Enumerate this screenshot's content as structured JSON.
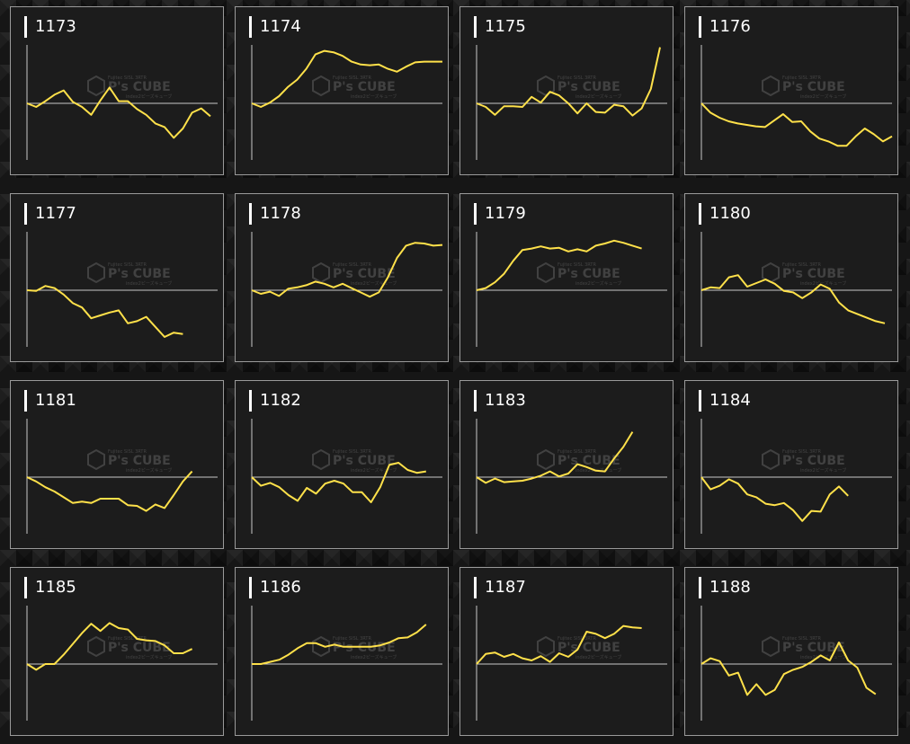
{
  "watermark": {
    "brand": "P's CUBE",
    "top_line": "Fujitec SISL 3RTR",
    "bottom_line": "index2ピーズキューブ"
  },
  "colors": {
    "line": "#ffe14a",
    "panel_bg": "#1c1c1c",
    "panel_border": "#9a9a9a",
    "axis": "#c8c8c8"
  },
  "chart_data": [
    {
      "type": "line",
      "title": "1173",
      "ylim": [
        -8,
        8
      ],
      "values": [
        0,
        -0.5,
        0.3,
        1.2,
        1.8,
        0.2,
        -0.5,
        -1.6,
        0.4,
        2.2,
        0.3,
        0.3,
        -0.8,
        -1.6,
        -2.8,
        -3.3,
        -4.8,
        -3.5,
        -1.3,
        -0.7,
        -1.8
      ]
    },
    {
      "type": "line",
      "title": "1174",
      "ylim": [
        -8,
        8
      ],
      "values": [
        0,
        -0.5,
        0.1,
        1.0,
        2.3,
        3.3,
        4.8,
        6.8,
        7.3,
        7.1,
        6.6,
        5.8,
        5.4,
        5.3,
        5.4,
        4.8,
        4.4,
        5.1,
        5.7,
        5.8,
        5.8,
        5.8
      ]
    },
    {
      "type": "line",
      "title": "1175",
      "ylim": [
        -8,
        8
      ],
      "values": [
        0,
        -0.5,
        -1.6,
        -0.4,
        -0.4,
        -0.5,
        0.9,
        0.1,
        1.6,
        1.1,
        0,
        -1.4,
        0,
        -1.2,
        -1.3,
        -0.2,
        -0.4,
        -1.7,
        -0.7,
        2.0,
        7.8
      ]
    },
    {
      "type": "line",
      "title": "1176",
      "ylim": [
        -8,
        8
      ],
      "values": [
        0,
        -1.3,
        -2.0,
        -2.5,
        -2.8,
        -3.0,
        -3.2,
        -3.3,
        -2.4,
        -1.5,
        -2.6,
        -2.5,
        -3.9,
        -4.9,
        -5.3,
        -5.9,
        -5.9,
        -4.6,
        -3.5,
        -4.3,
        -5.3,
        -4.6
      ]
    },
    {
      "type": "line",
      "title": "1177",
      "ylim": [
        -8,
        8
      ],
      "values": [
        0,
        -0.1,
        0.6,
        0.3,
        -0.6,
        -1.8,
        -2.4,
        -3.9,
        -3.5,
        -3.1,
        -2.8,
        -4.6,
        -4.3,
        -3.7,
        -5.1,
        -6.5,
        -5.9,
        -6.1
      ]
    },
    {
      "type": "line",
      "title": "1178",
      "ylim": [
        -8,
        8
      ],
      "values": [
        0,
        -0.5,
        -0.2,
        -0.8,
        0.2,
        0.4,
        0.7,
        1.2,
        0.9,
        0.4,
        0.9,
        0.3,
        -0.3,
        -0.9,
        -0.3,
        1.8,
        4.5,
        6.2,
        6.6,
        6.5,
        6.2,
        6.3
      ]
    },
    {
      "type": "line",
      "title": "1179",
      "ylim": [
        -8,
        8
      ],
      "values": [
        0,
        0.3,
        1.1,
        2.3,
        4.1,
        5.6,
        5.8,
        6.1,
        5.8,
        5.9,
        5.4,
        5.7,
        5.4,
        6.2,
        6.5,
        6.9,
        6.6,
        6.2,
        5.8
      ]
    },
    {
      "type": "line",
      "title": "1180",
      "ylim": [
        -8,
        8
      ],
      "values": [
        0,
        0.4,
        0.3,
        1.8,
        2.1,
        0.5,
        1.0,
        1.5,
        0.9,
        -0.1,
        -0.3,
        -1.1,
        -0.3,
        0.8,
        0.2,
        -1.7,
        -2.8,
        -3.3,
        -3.8,
        -4.3,
        -4.6
      ]
    },
    {
      "type": "line",
      "title": "1181",
      "ylim": [
        -8,
        8
      ],
      "values": [
        0,
        -0.6,
        -1.4,
        -2.0,
        -2.8,
        -3.6,
        -3.4,
        -3.6,
        -3.0,
        -3.0,
        -3.0,
        -3.9,
        -4.0,
        -4.7,
        -3.8,
        -4.3,
        -2.5,
        -0.6,
        0.8
      ]
    },
    {
      "type": "line",
      "title": "1182",
      "ylim": [
        -8,
        8
      ],
      "values": [
        0,
        -1.2,
        -0.8,
        -1.4,
        -2.5,
        -3.3,
        -1.5,
        -2.3,
        -0.9,
        -0.5,
        -0.9,
        -2.1,
        -2.1,
        -3.5,
        -1.4,
        1.7,
        2.0,
        1.0,
        0.6,
        0.8
      ]
    },
    {
      "type": "line",
      "title": "1183",
      "ylim": [
        -8,
        8
      ],
      "values": [
        0,
        -0.8,
        -0.2,
        -0.7,
        -0.6,
        -0.5,
        -0.2,
        0.2,
        0.8,
        0.1,
        0.5,
        1.8,
        1.4,
        0.9,
        0.8,
        2.6,
        4.2,
        6.3
      ]
    },
    {
      "type": "line",
      "title": "1184",
      "ylim": [
        -8,
        8
      ],
      "values": [
        0,
        -1.7,
        -1.2,
        -0.3,
        -0.9,
        -2.4,
        -2.8,
        -3.7,
        -3.9,
        -3.6,
        -4.6,
        -6.1,
        -4.7,
        -4.8,
        -2.4,
        -1.3,
        -2.6
      ]
    },
    {
      "type": "line",
      "title": "1185",
      "ylim": [
        -8,
        8
      ],
      "values": [
        0,
        -0.8,
        0,
        0,
        1.3,
        2.8,
        4.3,
        5.6,
        4.6,
        5.7,
        5.0,
        4.8,
        3.5,
        3.3,
        3.2,
        2.6,
        1.5,
        1.5,
        2.1
      ]
    },
    {
      "type": "line",
      "title": "1186",
      "ylim": [
        -8,
        8
      ],
      "values": [
        0,
        0,
        0.3,
        0.6,
        1.3,
        2.2,
        2.9,
        2.9,
        2.4,
        2.7,
        2.4,
        2.4,
        2.4,
        2.4,
        2.6,
        3.0,
        3.6,
        3.7,
        4.4,
        5.5
      ]
    },
    {
      "type": "line",
      "title": "1187",
      "ylim": [
        -8,
        8
      ],
      "values": [
        0,
        1.4,
        1.6,
        1.0,
        1.4,
        0.8,
        0.5,
        1.1,
        0.3,
        1.5,
        1.0,
        2.0,
        4.5,
        4.2,
        3.6,
        4.2,
        5.3,
        5.1,
        5.0
      ]
    },
    {
      "type": "line",
      "title": "1188",
      "ylim": [
        -8,
        8
      ],
      "values": [
        0,
        0.8,
        0.4,
        -1.6,
        -1.2,
        -4.3,
        -2.8,
        -4.3,
        -3.6,
        -1.4,
        -0.8,
        -0.4,
        0.3,
        1.2,
        0.5,
        3.0,
        0.5,
        -0.5,
        -3.3,
        -4.2
      ]
    }
  ]
}
